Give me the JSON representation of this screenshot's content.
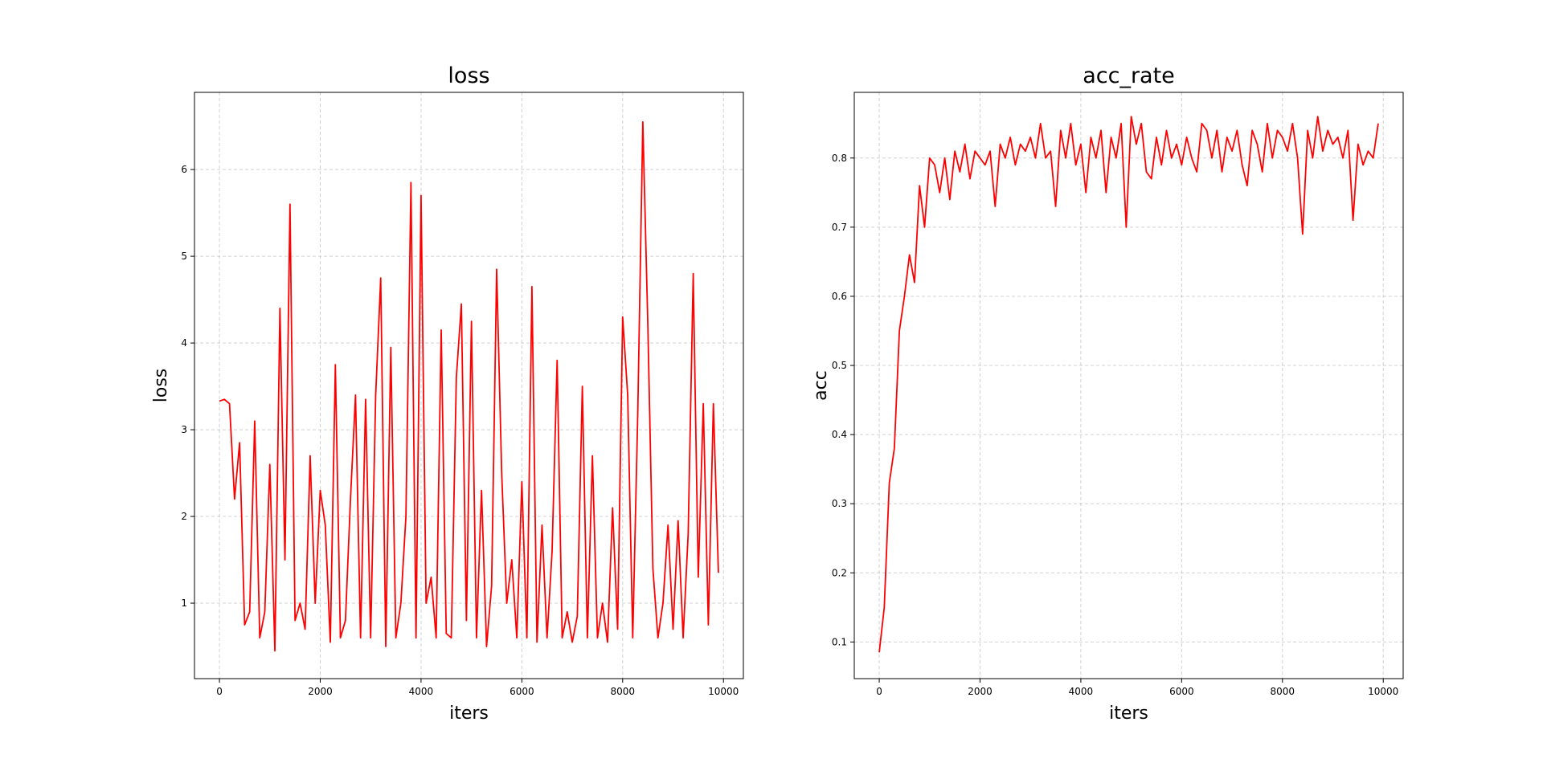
{
  "chart_data": [
    {
      "type": "line",
      "title": "loss",
      "xlabel": "iters",
      "ylabel": "loss",
      "grid": true,
      "x": [
        0,
        100,
        200,
        300,
        400,
        500,
        600,
        700,
        800,
        900,
        1000,
        1100,
        1200,
        1300,
        1400,
        1500,
        1600,
        1700,
        1800,
        1900,
        2000,
        2100,
        2200,
        2300,
        2400,
        2500,
        2600,
        2700,
        2800,
        2900,
        3000,
        3100,
        3200,
        3300,
        3400,
        3500,
        3600,
        3700,
        3800,
        3900,
        4000,
        4100,
        4200,
        4300,
        4400,
        4500,
        4600,
        4700,
        4800,
        4900,
        5000,
        5100,
        5200,
        5300,
        5400,
        5500,
        5600,
        5700,
        5800,
        5900,
        6000,
        6100,
        6200,
        6300,
        6400,
        6500,
        6600,
        6700,
        6800,
        6900,
        7000,
        7100,
        7200,
        7300,
        7400,
        7500,
        7600,
        7700,
        7800,
        7900,
        8000,
        8100,
        8200,
        8300,
        8400,
        8500,
        8600,
        8700,
        8800,
        8900,
        9000,
        9100,
        9200,
        9300,
        9400,
        9500,
        9600,
        9700,
        9800,
        9900
      ],
      "series": [
        {
          "color": "#ff0000",
          "values": [
            3.33,
            3.35,
            3.3,
            2.2,
            2.85,
            0.75,
            0.9,
            3.1,
            0.6,
            0.9,
            2.6,
            0.45,
            4.4,
            1.5,
            5.6,
            0.8,
            1.0,
            0.7,
            2.7,
            1.0,
            2.3,
            1.9,
            0.55,
            3.75,
            0.6,
            0.8,
            2.2,
            3.4,
            0.6,
            3.35,
            0.6,
            3.4,
            4.75,
            0.5,
            3.95,
            0.6,
            1.0,
            2.0,
            5.85,
            0.6,
            5.7,
            1.0,
            1.3,
            0.6,
            4.15,
            0.65,
            0.6,
            3.6,
            4.45,
            0.8,
            4.25,
            0.6,
            2.3,
            0.5,
            1.2,
            4.85,
            2.5,
            1.0,
            1.5,
            0.6,
            2.4,
            0.6,
            4.65,
            0.55,
            1.9,
            0.6,
            1.6,
            3.8,
            0.6,
            0.9,
            0.55,
            0.85,
            3.5,
            0.6,
            2.7,
            0.6,
            1.0,
            0.55,
            2.1,
            0.7,
            4.3,
            3.4,
            0.6,
            3.2,
            6.55,
            4.2,
            1.4,
            0.6,
            1.0,
            1.9,
            0.7,
            1.95,
            0.6,
            1.8,
            4.8,
            1.3,
            3.3,
            0.75,
            3.3,
            1.35
          ]
        }
      ],
      "xlim": [
        -495,
        10395
      ],
      "ylim": [
        0.13,
        6.89
      ],
      "xticks": [
        0,
        2000,
        4000,
        6000,
        8000,
        10000
      ],
      "yticks": [
        1,
        2,
        3,
        4,
        5,
        6
      ]
    },
    {
      "type": "line",
      "title": "acc_rate",
      "xlabel": "iters",
      "ylabel": "acc",
      "grid": true,
      "x": [
        0,
        100,
        200,
        300,
        400,
        500,
        600,
        700,
        800,
        900,
        1000,
        1100,
        1200,
        1300,
        1400,
        1500,
        1600,
        1700,
        1800,
        1900,
        2000,
        2100,
        2200,
        2300,
        2400,
        2500,
        2600,
        2700,
        2800,
        2900,
        3000,
        3100,
        3200,
        3300,
        3400,
        3500,
        3600,
        3700,
        3800,
        3900,
        4000,
        4100,
        4200,
        4300,
        4400,
        4500,
        4600,
        4700,
        4800,
        4900,
        5000,
        5100,
        5200,
        5300,
        5400,
        5500,
        5600,
        5700,
        5800,
        5900,
        6000,
        6100,
        6200,
        6300,
        6400,
        6500,
        6600,
        6700,
        6800,
        6900,
        7000,
        7100,
        7200,
        7300,
        7400,
        7500,
        7600,
        7700,
        7800,
        7900,
        8000,
        8100,
        8200,
        8300,
        8400,
        8500,
        8600,
        8700,
        8800,
        8900,
        9000,
        9100,
        9200,
        9300,
        9400,
        9500,
        9600,
        9700,
        9800,
        9900
      ],
      "series": [
        {
          "color": "#ff0000",
          "values": [
            0.085,
            0.15,
            0.33,
            0.38,
            0.55,
            0.6,
            0.66,
            0.62,
            0.76,
            0.7,
            0.8,
            0.79,
            0.75,
            0.8,
            0.74,
            0.81,
            0.78,
            0.82,
            0.77,
            0.81,
            0.8,
            0.79,
            0.81,
            0.73,
            0.82,
            0.8,
            0.83,
            0.79,
            0.82,
            0.81,
            0.83,
            0.8,
            0.85,
            0.8,
            0.81,
            0.73,
            0.84,
            0.8,
            0.85,
            0.79,
            0.82,
            0.75,
            0.83,
            0.8,
            0.84,
            0.75,
            0.83,
            0.8,
            0.85,
            0.7,
            0.86,
            0.82,
            0.85,
            0.78,
            0.77,
            0.83,
            0.79,
            0.84,
            0.8,
            0.82,
            0.79,
            0.83,
            0.8,
            0.78,
            0.85,
            0.84,
            0.8,
            0.84,
            0.78,
            0.83,
            0.81,
            0.84,
            0.79,
            0.76,
            0.84,
            0.82,
            0.78,
            0.85,
            0.8,
            0.84,
            0.83,
            0.81,
            0.85,
            0.8,
            0.69,
            0.84,
            0.8,
            0.86,
            0.81,
            0.84,
            0.82,
            0.83,
            0.8,
            0.84,
            0.71,
            0.82,
            0.79,
            0.81,
            0.8,
            0.85
          ]
        }
      ],
      "xlim": [
        -495,
        10395
      ],
      "ylim": [
        0.047,
        0.895
      ],
      "xticks": [
        0,
        2000,
        4000,
        6000,
        8000,
        10000
      ],
      "yticks": [
        0.1,
        0.2,
        0.3,
        0.4,
        0.5,
        0.6,
        0.7,
        0.8
      ]
    }
  ]
}
